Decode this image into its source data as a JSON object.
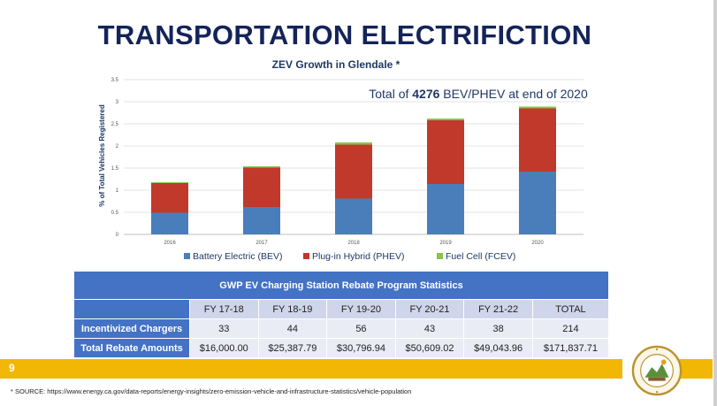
{
  "slide": {
    "title": "TRANSPORTATION ELECTRIFICTION",
    "page_number": "9",
    "source_note": "* SOURCE: https://www.energy.ca.gov/data-reports/energy-insights/zero-emission-vehicle-and-infrastructure-statistics/vehicle-population",
    "band_color": "#f2b705",
    "title_color": "#14245a",
    "seal_text": "CITY OF GLENDALE CALIFORNIA"
  },
  "chart_data": {
    "type": "bar",
    "stacked": true,
    "title": "ZEV Growth in Glendale *",
    "annotation": {
      "prefix": "Total of ",
      "value": "4276",
      "suffix": " BEV/PHEV at end of 2020"
    },
    "ylabel": "% of Total Vehicles Registered",
    "xlabel": "",
    "ylim": [
      0,
      3.5
    ],
    "yticks": [
      "0",
      "0.5",
      "1",
      "1.5",
      "2",
      "2.5",
      "3",
      "3.5"
    ],
    "grid": true,
    "legend_position": "bottom",
    "categories": [
      "2016",
      "2017",
      "2018",
      "2019",
      "2020"
    ],
    "series": [
      {
        "name": "Battery Electric (BEV)",
        "color": "#4a7ebb",
        "values": [
          0.49,
          0.62,
          0.81,
          1.14,
          1.42
        ]
      },
      {
        "name": "Plug-in Hybrid (PHEV)",
        "color": "#c0392b",
        "values": [
          0.67,
          0.89,
          1.22,
          1.44,
          1.43
        ]
      },
      {
        "name": "Fuel Cell (FCEV)",
        "color": "#8bc34a",
        "values": [
          0.02,
          0.03,
          0.05,
          0.04,
          0.04
        ]
      }
    ]
  },
  "table": {
    "title": "GWP EV Charging Station Rebate Program Statistics",
    "columns": [
      "FY 17-18",
      "FY 18-19",
      "FY 19-20",
      "FY 20-21",
      "FY 21-22",
      "TOTAL"
    ],
    "rows": [
      {
        "label": "Incentivized Chargers",
        "cells": [
          "33",
          "44",
          "56",
          "43",
          "38",
          "214"
        ]
      },
      {
        "label": "Total Rebate Amounts",
        "cells": [
          "$16,000.00",
          "$25,387.79",
          "$30,796.94",
          "$50,609.02",
          "$49,043.96",
          "$171,837.71"
        ]
      }
    ]
  }
}
